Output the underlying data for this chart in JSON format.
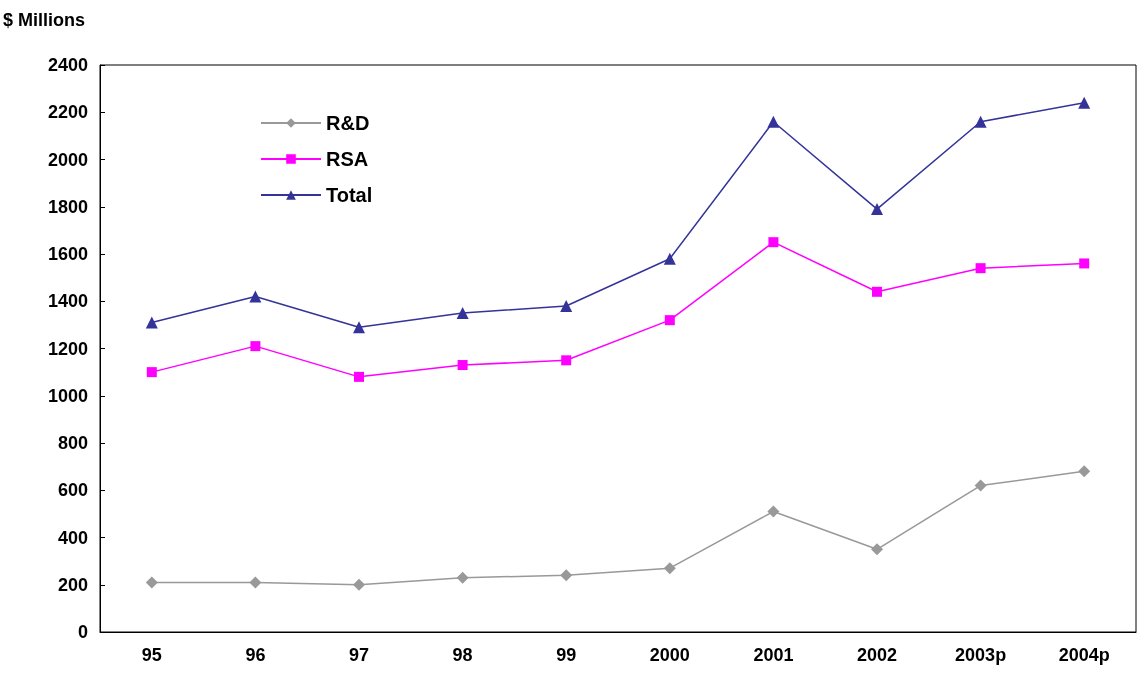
{
  "chart_data": {
    "type": "line",
    "ylabel": "$ Millions",
    "categories": [
      "95",
      "96",
      "97",
      "98",
      "99",
      "2000",
      "2001",
      "2002",
      "2003p",
      "2004p"
    ],
    "series": [
      {
        "name": "R&D",
        "color": "#999999",
        "marker": "diamond",
        "values": [
          210,
          210,
          200,
          230,
          240,
          270,
          510,
          350,
          620,
          680
        ]
      },
      {
        "name": "RSA",
        "color": "#ff00ff",
        "marker": "square",
        "values": [
          1100,
          1210,
          1080,
          1130,
          1150,
          1320,
          1650,
          1440,
          1540,
          1560
        ]
      },
      {
        "name": "Total",
        "color": "#333399",
        "marker": "triangle",
        "values": [
          1310,
          1420,
          1290,
          1350,
          1380,
          1580,
          2160,
          1790,
          2160,
          2240
        ]
      }
    ],
    "ylim": [
      0,
      2400
    ],
    "yticks": [
      0,
      200,
      400,
      600,
      800,
      1000,
      1200,
      1400,
      1600,
      1800,
      2000,
      2200,
      2400
    ],
    "grid": false,
    "legend": "top left",
    "line_style": "solid"
  }
}
